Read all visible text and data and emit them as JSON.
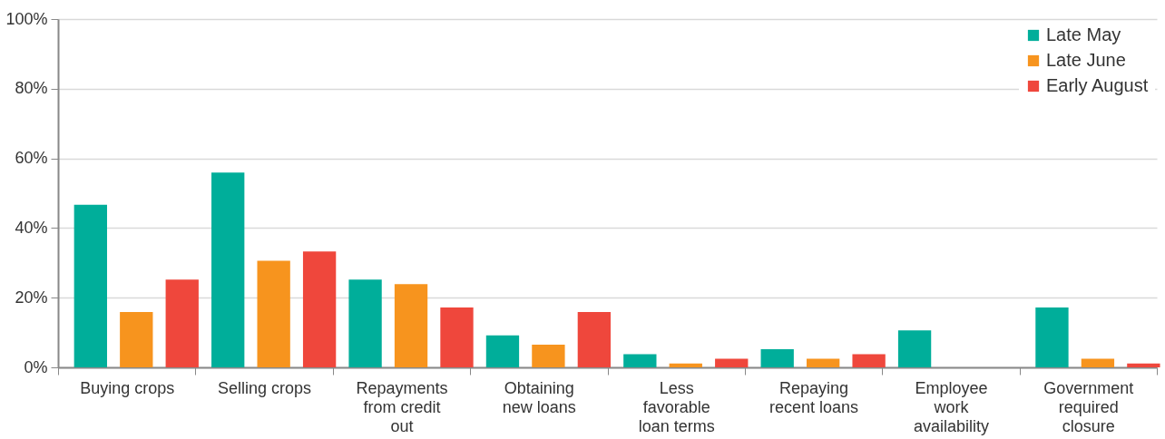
{
  "chart_data": {
    "type": "bar",
    "categories": [
      "Buying crops",
      "Selling crops",
      "Repayments from credit out",
      "Obtaining new loans",
      "Less favorable loan terms",
      "Repaying recent loans",
      "Employee work availability",
      "Government required closure"
    ],
    "series": [
      {
        "name": "Late May",
        "color": "#00ae9a",
        "values": [
          46.7,
          55.9,
          25.2,
          9.2,
          3.8,
          5.2,
          10.6,
          17.2
        ]
      },
      {
        "name": "Late June",
        "color": "#f7941e",
        "values": [
          15.9,
          30.6,
          23.9,
          6.5,
          1.1,
          2.5,
          0,
          2.5
        ]
      },
      {
        "name": "Early August",
        "color": "#ef473c",
        "values": [
          25.2,
          33.3,
          17.2,
          15.9,
          2.5,
          3.8,
          0,
          1.1
        ]
      }
    ],
    "ylim": [
      0,
      100
    ],
    "yticks": [
      {
        "value": 0,
        "label": "0%"
      },
      {
        "value": 20,
        "label": "20%"
      },
      {
        "value": 40,
        "label": "40%"
      },
      {
        "value": 60,
        "label": "60%"
      },
      {
        "value": 80,
        "label": "80%"
      },
      {
        "value": 100,
        "label": "100%"
      }
    ],
    "grid": "y",
    "legend": "top right"
  }
}
